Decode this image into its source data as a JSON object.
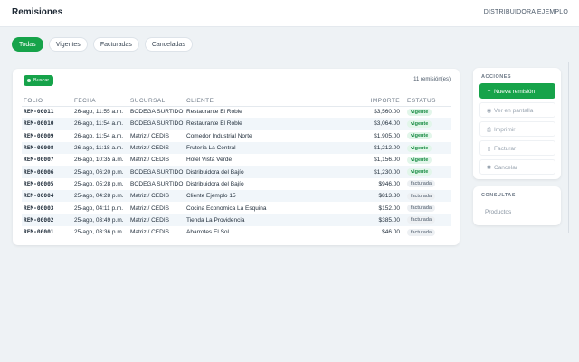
{
  "header": {
    "title": "Remisiones",
    "company": "DISTRIBUIDORA EJEMPLO"
  },
  "tabs": [
    {
      "label": "Todas",
      "active": true
    },
    {
      "label": "Vigentes",
      "active": false
    },
    {
      "label": "Facturadas",
      "active": false
    },
    {
      "label": "Canceladas",
      "active": false
    }
  ],
  "toolbar": {
    "search_label": "Buscar",
    "count_text": "11 remisión(es)"
  },
  "table": {
    "columns": [
      "FOLIO",
      "FECHA",
      "SUCURSAL",
      "CLIENTE",
      "IMPORTE",
      "ESTATUS"
    ],
    "rows": [
      {
        "folio": "REM-00011",
        "fecha": "26-ago, 11:55 a.m.",
        "sucursal": "BODEGA SURTIDO",
        "cliente": "Restaurante El Roble",
        "importe": "$3,560.00",
        "estatus": "vigente"
      },
      {
        "folio": "REM-00010",
        "fecha": "26-ago, 11:54 a.m.",
        "sucursal": "BODEGA SURTIDO",
        "cliente": "Restaurante El Roble",
        "importe": "$3,064.00",
        "estatus": "vigente"
      },
      {
        "folio": "REM-00009",
        "fecha": "26-ago, 11:54 a.m.",
        "sucursal": "Matriz / CEDIS",
        "cliente": "Comedor Industrial Norte",
        "importe": "$1,905.00",
        "estatus": "vigente"
      },
      {
        "folio": "REM-00008",
        "fecha": "26-ago, 11:18 a.m.",
        "sucursal": "Matriz / CEDIS",
        "cliente": "Frutería La Central",
        "importe": "$1,212.00",
        "estatus": "vigente"
      },
      {
        "folio": "REM-00007",
        "fecha": "26-ago, 10:35 a.m.",
        "sucursal": "Matriz / CEDIS",
        "cliente": "Hotel Vista Verde",
        "importe": "$1,156.00",
        "estatus": "vigente"
      },
      {
        "folio": "REM-00006",
        "fecha": "25-ago, 06:20 p.m.",
        "sucursal": "BODEGA SURTIDO",
        "cliente": "Distribuidora del Bajío",
        "importe": "$1,230.00",
        "estatus": "vigente"
      },
      {
        "folio": "REM-00005",
        "fecha": "25-ago, 05:28 p.m.",
        "sucursal": "BODEGA SURTIDO",
        "cliente": "Distribuidora del Bajío",
        "importe": "$946.00",
        "estatus": "facturada"
      },
      {
        "folio": "REM-00004",
        "fecha": "25-ago, 04:28 p.m.",
        "sucursal": "Matriz / CEDIS",
        "cliente": "Cliente Ejemplo 15",
        "importe": "$813.80",
        "estatus": "facturada"
      },
      {
        "folio": "REM-00003",
        "fecha": "25-ago, 04:11 p.m.",
        "sucursal": "Matriz / CEDIS",
        "cliente": "Cocina Economica La Esquina",
        "importe": "$152.00",
        "estatus": "facturada"
      },
      {
        "folio": "REM-00002",
        "fecha": "25-ago, 03:49 p.m.",
        "sucursal": "Matriz / CEDIS",
        "cliente": "Tienda La Providencia",
        "importe": "$385.00",
        "estatus": "facturada"
      },
      {
        "folio": "REM-00001",
        "fecha": "25-ago, 03:36 p.m.",
        "sucursal": "Matriz / CEDIS",
        "cliente": "Abarrotes El Sol",
        "importe": "$46.00",
        "estatus": "facturada"
      }
    ]
  },
  "sidebar": {
    "actions_title": "ACCIONES",
    "actions": [
      {
        "label": "Nueva remisión",
        "icon": "+",
        "icon_name": "plus-icon",
        "primary": true
      },
      {
        "label": "Ver en pantalla",
        "icon": "◉",
        "icon_name": "eye-icon",
        "primary": false
      },
      {
        "label": "Imprimir",
        "icon": "⎙",
        "icon_name": "printer-icon",
        "primary": false
      },
      {
        "label": "Facturar",
        "icon": "▯",
        "icon_name": "document-icon",
        "primary": false
      },
      {
        "label": "Cancelar",
        "icon": "✖",
        "icon_name": "close-icon",
        "primary": false
      }
    ],
    "queries_title": "CONSULTAS",
    "queries": [
      {
        "label": "Productos"
      }
    ]
  },
  "colors": {
    "accent": "#16a34a",
    "background": "#eef2f5",
    "vigente_badge": "#e2f6ea",
    "facturada_badge": "#edf0f3"
  }
}
